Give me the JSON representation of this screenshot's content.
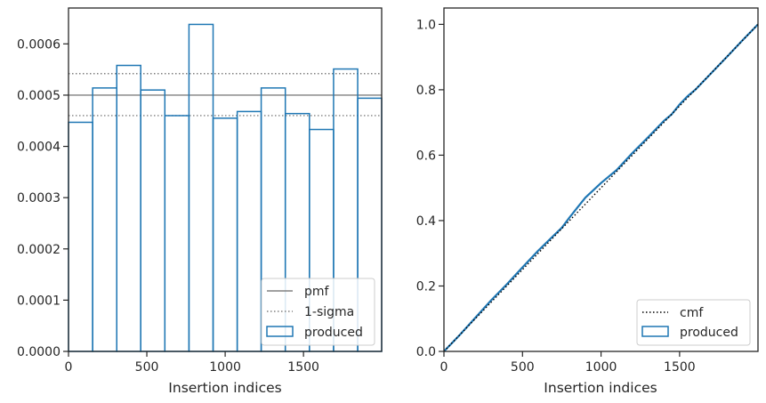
{
  "chart_data": [
    {
      "type": "line",
      "xlabel": "Insertion indices",
      "ylabel": "",
      "xlim": [
        0,
        1999
      ],
      "ylim": [
        0,
        0.00067
      ],
      "xticks": [
        0,
        500,
        1000,
        1500
      ],
      "yticks": [
        0,
        0.0001,
        0.0002,
        0.0003,
        0.0004,
        0.0005,
        0.0006
      ],
      "ytick_labels": [
        "0.0000",
        "0.0001",
        "0.0002",
        "0.0003",
        "0.0004",
        "0.0005",
        "0.0006"
      ],
      "grid": false,
      "legend_position": "lower-right",
      "pmf": 0.0005,
      "sigma_band": [
        0.00046,
        0.000542
      ],
      "histogram": {
        "bin_edges": [
          0,
          154,
          308,
          461,
          615,
          769,
          923,
          1077,
          1230,
          1384,
          1538,
          1692,
          1846,
          1999
        ],
        "values": [
          0.000447,
          0.000514,
          0.000558,
          0.00051,
          0.00046,
          0.000638,
          0.000455,
          0.000468,
          0.000514,
          0.000464,
          0.000433,
          0.000551,
          0.000494
        ]
      },
      "legend": [
        {
          "label": "pmf",
          "style": "solid",
          "color": "#808080"
        },
        {
          "label": "1-sigma",
          "style": "dotted",
          "color": "#808080"
        },
        {
          "label": "produced",
          "style": "patch",
          "color": "#1f77b4"
        }
      ]
    },
    {
      "type": "line",
      "xlabel": "Insertion indices",
      "ylabel": "",
      "xlim": [
        0,
        1999
      ],
      "ylim": [
        0,
        1.05
      ],
      "xticks": [
        0,
        500,
        1000,
        1500
      ],
      "yticks": [
        0,
        0.2,
        0.4,
        0.6,
        0.8,
        1.0
      ],
      "ytick_labels": [
        "0.0",
        "0.2",
        "0.4",
        "0.6",
        "0.8",
        "1.0"
      ],
      "grid": false,
      "legend_position": "lower-right",
      "cmf": {
        "x": [
          0,
          1999
        ],
        "y": [
          0,
          1.0
        ]
      },
      "produced": {
        "x": [
          0,
          100,
          200,
          300,
          400,
          500,
          600,
          700,
          750,
          800,
          850,
          900,
          1000,
          1050,
          1100,
          1200,
          1300,
          1400,
          1450,
          1500,
          1550,
          1600,
          1700,
          1800,
          1900,
          1999
        ],
        "y": [
          0,
          0.05,
          0.103,
          0.156,
          0.205,
          0.257,
          0.308,
          0.355,
          0.378,
          0.41,
          0.44,
          0.47,
          0.515,
          0.535,
          0.555,
          0.607,
          0.655,
          0.705,
          0.725,
          0.755,
          0.78,
          0.8,
          0.85,
          0.9,
          0.951,
          1.0
        ]
      },
      "legend": [
        {
          "label": "cmf",
          "style": "dotted",
          "color": "#000000"
        },
        {
          "label": "produced",
          "style": "patch",
          "color": "#1f77b4"
        }
      ]
    }
  ],
  "colors": {
    "produced": "#1f77b4",
    "pmf": "#808080",
    "cmf": "#000000",
    "axes": "#262626"
  }
}
